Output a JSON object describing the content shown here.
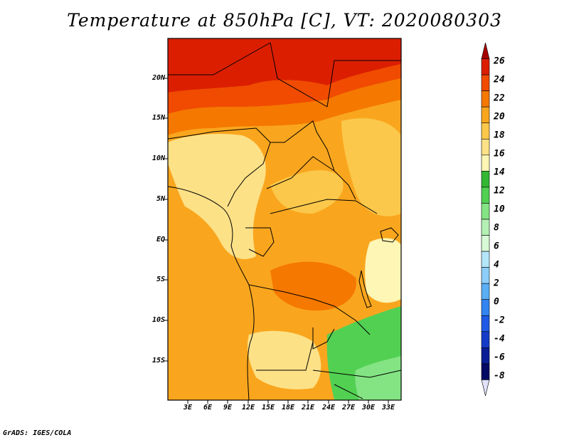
{
  "title": "Temperature at 850hPa [C], VT: 2020080303",
  "footer": "GrADS: IGES/COLA",
  "map": {
    "lat_labels": [
      "20N",
      "15N",
      "10N",
      "5N",
      "EQ",
      "5S",
      "10S",
      "15S"
    ],
    "lon_labels": [
      "3E",
      "6E",
      "9E",
      "12E",
      "15E",
      "18E",
      "21E",
      "24E",
      "27E",
      "30E",
      "33E"
    ]
  },
  "colorbar": {
    "labels": [
      "26",
      "24",
      "22",
      "20",
      "18",
      "16",
      "14",
      "12",
      "10",
      "8",
      "6",
      "4",
      "2",
      "0",
      "-2",
      "-4",
      "-6",
      "-8"
    ],
    "colors": [
      "#a50000",
      "#dc1e00",
      "#f04b00",
      "#f57800",
      "#f9a61e",
      "#fbc84b",
      "#fde187",
      "#fdf6b4",
      "#33b733",
      "#52d052",
      "#84e484",
      "#b4f0b4",
      "#d7fad7",
      "#b4e6fa",
      "#8dcdfa",
      "#5aaff5",
      "#3284f0",
      "#1e5ae6",
      "#143cc8",
      "#0a1e96",
      "#050a64",
      "#e1e1fa"
    ]
  }
}
